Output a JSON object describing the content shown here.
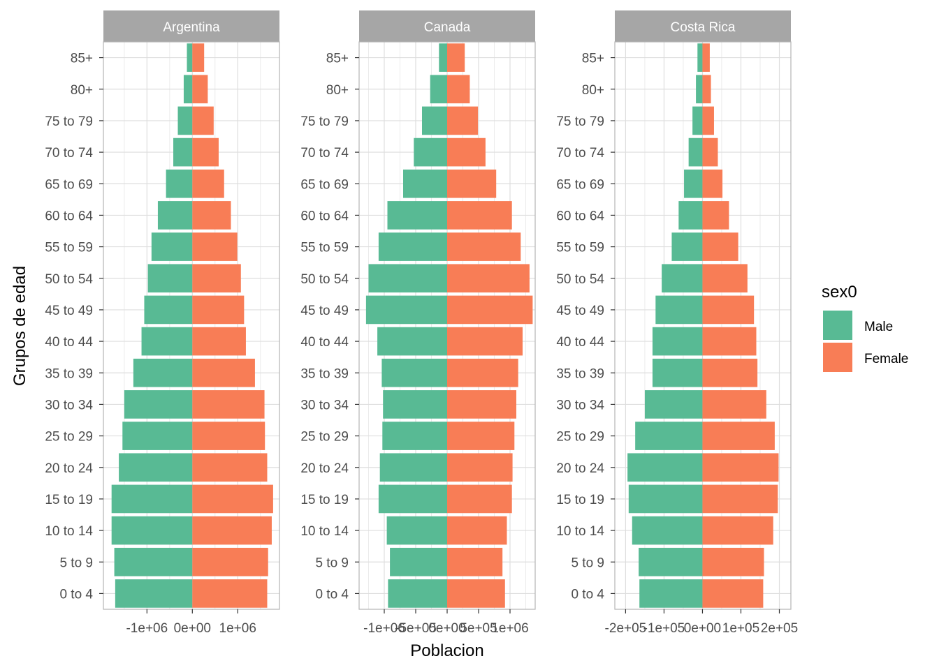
{
  "chart_data": {
    "type": "bar",
    "orientation": "horizontal",
    "xlabel": "Poblacion",
    "ylabel": "Grupos de edad",
    "grid": true,
    "legend_position": "right",
    "legend": {
      "title": "sex0",
      "entries": [
        {
          "name": "Male",
          "color": "#58BA94"
        },
        {
          "name": "Female",
          "color": "#F87D56"
        }
      ]
    },
    "categories": [
      "0 to 4",
      "5 to 9",
      "10 to 14",
      "15 to 19",
      "20 to 24",
      "25 to 29",
      "30 to 34",
      "35 to 39",
      "40 to 44",
      "45 to 49",
      "50 to 54",
      "55 to 59",
      "60 to 64",
      "65 to 69",
      "70 to 74",
      "75 to 79",
      "80+",
      "85+"
    ],
    "panels": [
      {
        "title": "Argentina",
        "xlim": [
          -1960000,
          1920000
        ],
        "xticks": [
          -1000000,
          0,
          1000000
        ],
        "xtick_labels": [
          "-1e+06",
          "0e+00",
          "1e+06"
        ],
        "series": [
          {
            "name": "Male",
            "values": [
              -1700000,
              -1720000,
              -1780000,
              -1780000,
              -1620000,
              -1540000,
              -1500000,
              -1300000,
              -1120000,
              -1060000,
              -980000,
              -900000,
              -760000,
              -580000,
              -420000,
              -320000,
              -190000,
              -120000
            ]
          },
          {
            "name": "Female",
            "values": [
              1650000,
              1670000,
              1750000,
              1780000,
              1650000,
              1600000,
              1590000,
              1380000,
              1180000,
              1140000,
              1070000,
              990000,
              850000,
              700000,
              580000,
              470000,
              340000,
              260000
            ]
          }
        ]
      },
      {
        "title": "Canada",
        "xlim": [
          -1400000,
          1400000
        ],
        "xticks": [
          -1000000,
          -500000,
          0,
          500000,
          1000000
        ],
        "xtick_labels": [
          "-1e+06",
          "-5e+05",
          "0e+00",
          "5e+05",
          "1e+06"
        ],
        "series": [
          {
            "name": "Male",
            "values": [
              -940000,
              -910000,
              -960000,
              -1090000,
              -1070000,
              -1030000,
              -1020000,
              -1040000,
              -1110000,
              -1290000,
              -1250000,
              -1090000,
              -950000,
              -700000,
              -530000,
              -400000,
              -270000,
              -130000
            ]
          },
          {
            "name": "Female",
            "values": [
              920000,
              880000,
              950000,
              1030000,
              1040000,
              1070000,
              1100000,
              1130000,
              1200000,
              1360000,
              1310000,
              1170000,
              1030000,
              780000,
              610000,
              490000,
              360000,
              280000
            ]
          }
        ]
      },
      {
        "title": "Costa Rica",
        "xlim": [
          -228000,
          230000
        ],
        "xticks": [
          -200000,
          -100000,
          0,
          100000,
          200000
        ],
        "xtick_labels": [
          "-2e+05",
          "-1e+05",
          "0e+00",
          "1e+05",
          "2e+05"
        ],
        "series": [
          {
            "name": "Male",
            "values": [
              -164000,
              -166000,
              -183000,
              -192000,
              -195000,
              -175000,
              -150000,
              -130000,
              -130000,
              -122000,
              -106000,
              -80000,
              -62000,
              -48000,
              -36000,
              -26000,
              -17000,
              -13000
            ]
          },
          {
            "name": "Female",
            "values": [
              158000,
              160000,
              184000,
              196000,
              198000,
              188000,
              166000,
              143000,
              140000,
              134000,
              117000,
              93000,
              69000,
              52000,
              40000,
              30000,
              22000,
              19000
            ]
          }
        ]
      }
    ]
  }
}
